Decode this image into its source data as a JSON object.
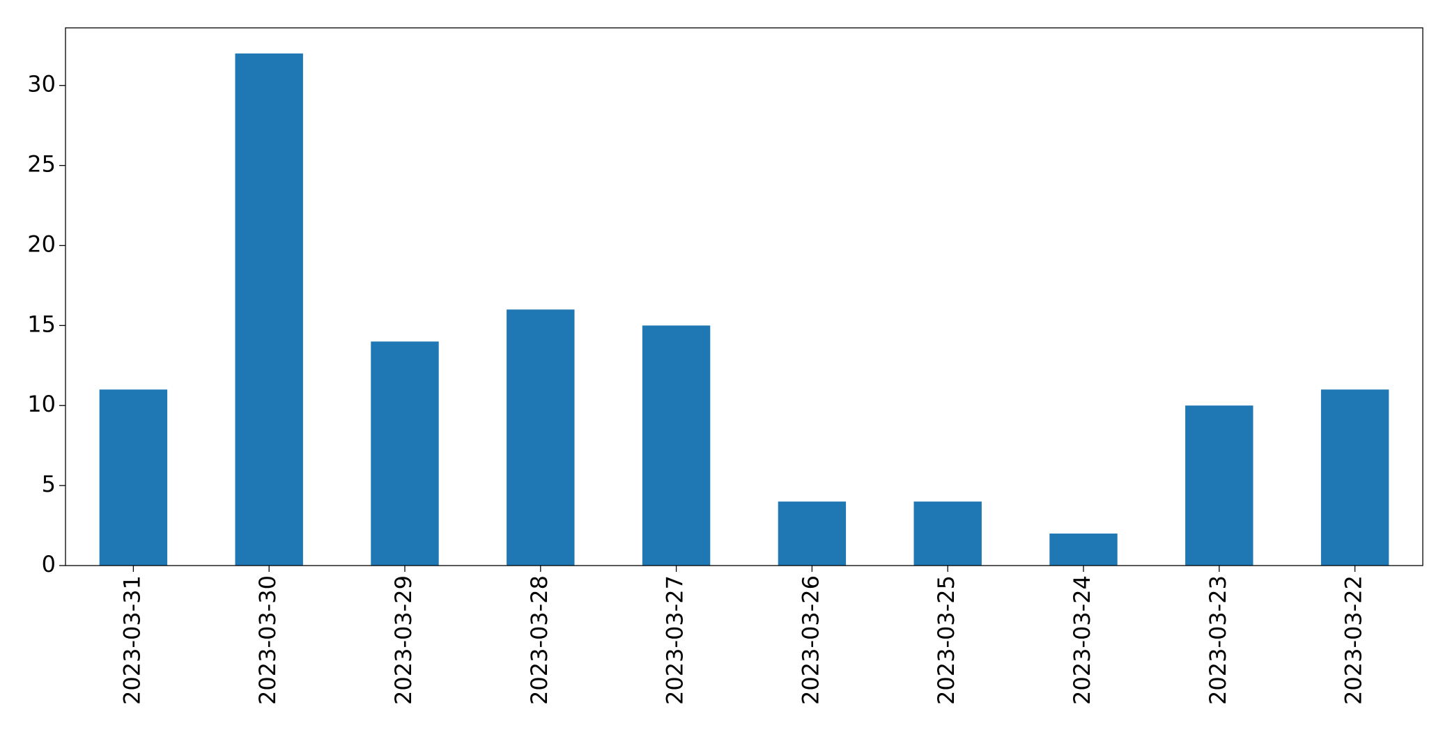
{
  "chart_data": {
    "type": "bar",
    "categories": [
      "2023-03-31",
      "2023-03-30",
      "2023-03-29",
      "2023-03-28",
      "2023-03-27",
      "2023-03-26",
      "2023-03-25",
      "2023-03-24",
      "2023-03-23",
      "2023-03-22"
    ],
    "values": [
      11,
      32,
      14,
      16,
      15,
      4,
      4,
      2,
      10,
      11
    ],
    "color": "#1f77b4",
    "ylim": [
      0,
      33.6
    ],
    "yticks": [
      0,
      5,
      10,
      15,
      20,
      25,
      30
    ],
    "grid": false
  }
}
